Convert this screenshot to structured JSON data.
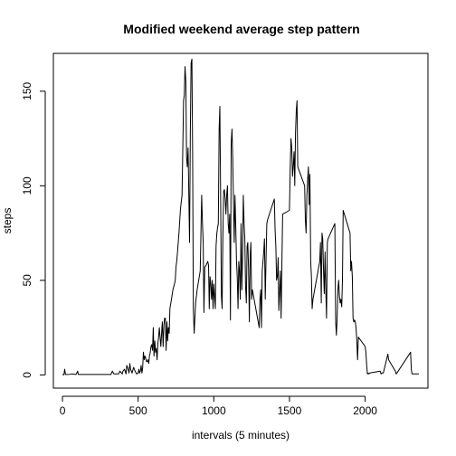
{
  "chart_data": {
    "type": "line",
    "title": "Modified weekend average step pattern",
    "xlabel": "intervals (5 minutes)",
    "ylabel": "steps",
    "xlim": [
      -60,
      2415
    ],
    "ylim": [
      -7,
      170
    ],
    "xticks": [
      0,
      500,
      1000,
      1500,
      2000
    ],
    "yticks": [
      0,
      50,
      100,
      150
    ],
    "grid": false,
    "series": [
      {
        "color": "#000000",
        "points": [
          [
            0,
            0.2
          ],
          [
            10,
            0.1
          ],
          [
            15,
            3
          ],
          [
            20,
            0.2
          ],
          [
            50,
            0.3
          ],
          [
            60,
            0.5
          ],
          [
            90,
            0.2
          ],
          [
            100,
            2
          ],
          [
            105,
            0.2
          ],
          [
            150,
            0.2
          ],
          [
            200,
            0.2
          ],
          [
            230,
            0.2
          ],
          [
            300,
            0.2
          ],
          [
            320,
            0.2
          ],
          [
            330,
            2
          ],
          [
            340,
            0.5
          ],
          [
            370,
            0.5
          ],
          [
            380,
            2
          ],
          [
            395,
            0.5
          ],
          [
            400,
            2
          ],
          [
            410,
            3
          ],
          [
            420,
            0.5
          ],
          [
            425,
            5
          ],
          [
            430,
            4
          ],
          [
            440,
            1
          ],
          [
            445,
            6
          ],
          [
            450,
            3
          ],
          [
            460,
            1
          ],
          [
            470,
            4
          ],
          [
            480,
            2
          ],
          [
            490,
            0.5
          ],
          [
            500,
            1
          ],
          [
            505,
            3
          ],
          [
            510,
            1
          ],
          [
            515,
            2
          ],
          [
            520,
            5
          ],
          [
            525,
            1
          ],
          [
            530,
            4
          ],
          [
            535,
            12
          ],
          [
            540,
            8
          ],
          [
            545,
            10
          ],
          [
            550,
            9
          ],
          [
            555,
            7
          ],
          [
            560,
            7
          ],
          [
            565,
            8
          ],
          [
            570,
            6
          ],
          [
            575,
            10
          ],
          [
            580,
            12
          ],
          [
            585,
            15
          ],
          [
            590,
            16
          ],
          [
            595,
            13
          ],
          [
            600,
            25
          ],
          [
            605,
            10
          ],
          [
            610,
            18
          ],
          [
            615,
            12
          ],
          [
            620,
            14
          ],
          [
            625,
            8
          ],
          [
            630,
            16
          ],
          [
            635,
            20
          ],
          [
            640,
            25
          ],
          [
            645,
            20
          ],
          [
            650,
            15
          ],
          [
            655,
            22
          ],
          [
            660,
            28
          ],
          [
            665,
            15
          ],
          [
            670,
            26
          ],
          [
            675,
            30
          ],
          [
            680,
            30
          ],
          [
            685,
            13
          ],
          [
            690,
            28
          ],
          [
            695,
            18
          ],
          [
            700,
            25
          ],
          [
            705,
            22
          ],
          [
            710,
            35
          ],
          [
            720,
            40
          ],
          [
            730,
            45
          ],
          [
            740,
            48
          ],
          [
            745,
            50
          ],
          [
            750,
            57
          ],
          [
            755,
            60
          ],
          [
            760,
            65
          ],
          [
            770,
            75
          ],
          [
            780,
            88
          ],
          [
            790,
            95
          ],
          [
            800,
            145
          ],
          [
            805,
            148
          ],
          [
            810,
            163
          ],
          [
            815,
            155
          ],
          [
            820,
            115
          ],
          [
            825,
            110
          ],
          [
            830,
            120
          ],
          [
            835,
            95
          ],
          [
            840,
            70
          ],
          [
            845,
            130
          ],
          [
            850,
            165
          ],
          [
            855,
            167
          ],
          [
            860,
            117
          ],
          [
            865,
            35
          ],
          [
            870,
            22
          ],
          [
            880,
            38
          ],
          [
            890,
            45
          ],
          [
            900,
            50
          ],
          [
            910,
            55
          ],
          [
            920,
            95
          ],
          [
            925,
            80
          ],
          [
            930,
            70
          ],
          [
            935,
            33
          ],
          [
            940,
            57
          ],
          [
            950,
            58
          ],
          [
            960,
            60
          ],
          [
            965,
            58
          ],
          [
            970,
            35
          ],
          [
            975,
            52
          ],
          [
            980,
            48
          ],
          [
            985,
            40
          ],
          [
            990,
            50
          ],
          [
            995,
            35
          ],
          [
            1000,
            48
          ],
          [
            1005,
            42
          ],
          [
            1010,
            35
          ],
          [
            1015,
            68
          ],
          [
            1020,
            75
          ],
          [
            1025,
            78
          ],
          [
            1030,
            80
          ],
          [
            1035,
            130
          ],
          [
            1040,
            142
          ],
          [
            1045,
            98
          ],
          [
            1050,
            42
          ],
          [
            1055,
            35
          ],
          [
            1060,
            72
          ],
          [
            1065,
            97
          ],
          [
            1070,
            98
          ],
          [
            1075,
            93
          ],
          [
            1080,
            85
          ],
          [
            1085,
            95
          ],
          [
            1090,
            100
          ],
          [
            1095,
            80
          ],
          [
            1100,
            75
          ],
          [
            1105,
            85
          ],
          [
            1110,
            29
          ],
          [
            1115,
            122
          ],
          [
            1120,
            130
          ],
          [
            1125,
            115
          ],
          [
            1130,
            90
          ],
          [
            1135,
            70
          ],
          [
            1140,
            95
          ],
          [
            1145,
            78
          ],
          [
            1150,
            60
          ],
          [
            1155,
            52
          ],
          [
            1160,
            35
          ],
          [
            1165,
            60
          ],
          [
            1170,
            55
          ],
          [
            1175,
            40
          ],
          [
            1180,
            80
          ],
          [
            1185,
            45
          ],
          [
            1190,
            62
          ],
          [
            1195,
            95
          ],
          [
            1200,
            80
          ],
          [
            1205,
            72
          ],
          [
            1210,
            47
          ],
          [
            1215,
            38
          ],
          [
            1220,
            68
          ],
          [
            1225,
            70
          ],
          [
            1230,
            55
          ],
          [
            1235,
            28
          ],
          [
            1240,
            63
          ],
          [
            1245,
            70
          ],
          [
            1250,
            40
          ],
          [
            1255,
            45
          ],
          [
            1300,
            25
          ],
          [
            1305,
            40
          ],
          [
            1310,
            45
          ],
          [
            1315,
            25
          ],
          [
            1320,
            55
          ],
          [
            1330,
            65
          ],
          [
            1335,
            72
          ],
          [
            1340,
            40
          ],
          [
            1345,
            60
          ],
          [
            1350,
            80
          ],
          [
            1355,
            82
          ],
          [
            1400,
            93
          ],
          [
            1405,
            76
          ],
          [
            1410,
            68
          ],
          [
            1415,
            50
          ],
          [
            1420,
            52
          ],
          [
            1425,
            62
          ],
          [
            1430,
            34
          ],
          [
            1435,
            45
          ],
          [
            1440,
            55
          ],
          [
            1445,
            30
          ],
          [
            1450,
            60
          ],
          [
            1455,
            85
          ],
          [
            1500,
            87
          ],
          [
            1505,
            110
          ],
          [
            1510,
            125
          ],
          [
            1515,
            120
          ],
          [
            1520,
            105
          ],
          [
            1525,
            110
          ],
          [
            1530,
            118
          ],
          [
            1535,
            100
          ],
          [
            1540,
            128
          ],
          [
            1545,
            140
          ],
          [
            1550,
            145
          ],
          [
            1555,
            110
          ],
          [
            1600,
            100
          ],
          [
            1605,
            82
          ],
          [
            1610,
            75
          ],
          [
            1615,
            95
          ],
          [
            1620,
            103
          ],
          [
            1625,
            110
          ],
          [
            1630,
            90
          ],
          [
            1635,
            106
          ],
          [
            1640,
            60
          ],
          [
            1645,
            52
          ],
          [
            1650,
            35
          ],
          [
            1655,
            40
          ],
          [
            1700,
            60
          ],
          [
            1705,
            70
          ],
          [
            1710,
            38
          ],
          [
            1715,
            75
          ],
          [
            1720,
            72
          ],
          [
            1725,
            55
          ],
          [
            1730,
            43
          ],
          [
            1735,
            65
          ],
          [
            1740,
            45
          ],
          [
            1745,
            30
          ],
          [
            1750,
            70
          ],
          [
            1755,
            72
          ],
          [
            1800,
            80
          ],
          [
            1805,
            28
          ],
          [
            1810,
            21
          ],
          [
            1815,
            30
          ],
          [
            1820,
            45
          ],
          [
            1825,
            50
          ],
          [
            1830,
            42
          ],
          [
            1835,
            38
          ],
          [
            1840,
            40
          ],
          [
            1845,
            36
          ],
          [
            1850,
            50
          ],
          [
            1855,
            87
          ],
          [
            1900,
            75
          ],
          [
            1905,
            55
          ],
          [
            1910,
            60
          ],
          [
            1915,
            52
          ],
          [
            1920,
            30
          ],
          [
            1925,
            28
          ],
          [
            1930,
            29
          ],
          [
            1935,
            28
          ],
          [
            1940,
            25
          ],
          [
            1945,
            18
          ],
          [
            1950,
            8
          ],
          [
            1955,
            20
          ],
          [
            2000,
            15
          ],
          [
            2005,
            12
          ],
          [
            2010,
            5
          ],
          [
            2015,
            0.5
          ],
          [
            2020,
            1
          ],
          [
            2025,
            0.5
          ],
          [
            2030,
            1
          ],
          [
            2100,
            2
          ],
          [
            2105,
            0.5
          ],
          [
            2110,
            1
          ],
          [
            2120,
            1
          ],
          [
            2150,
            11
          ],
          [
            2155,
            8
          ],
          [
            2200,
            2
          ],
          [
            2205,
            0.5
          ],
          [
            2210,
            1
          ],
          [
            2300,
            12
          ],
          [
            2305,
            3
          ],
          [
            2310,
            0.5
          ],
          [
            2315,
            0.5
          ],
          [
            2320,
            0.5
          ],
          [
            2325,
            0.5
          ],
          [
            2330,
            0.5
          ],
          [
            2335,
            0.5
          ],
          [
            2340,
            0.5
          ],
          [
            2345,
            0.5
          ],
          [
            2350,
            0.5
          ],
          [
            2355,
            0.5
          ]
        ]
      }
    ]
  }
}
